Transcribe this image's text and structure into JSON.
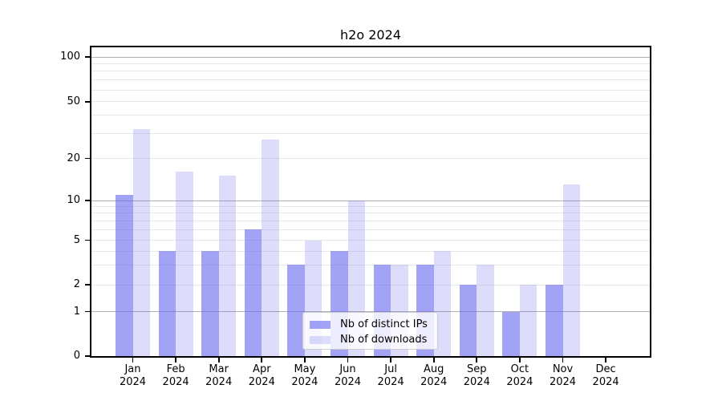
{
  "chart_data": {
    "type": "bar",
    "title": "h2o 2024",
    "categories": [
      "Jan 2024",
      "Feb 2024",
      "Mar 2024",
      "Apr 2024",
      "May 2024",
      "Jun 2024",
      "Jul 2024",
      "Aug 2024",
      "Sep 2024",
      "Oct 2024",
      "Nov 2024",
      "Dec 2024"
    ],
    "series": [
      {
        "name": "Nb of distinct IPs",
        "color": "#6666ee",
        "alpha": 0.6,
        "values": [
          11,
          4,
          4,
          6,
          3,
          4,
          3,
          3,
          2,
          1,
          2,
          0
        ]
      },
      {
        "name": "Nb of downloads",
        "color": "#6666ee",
        "alpha": 0.22,
        "values": [
          32,
          16,
          15,
          27,
          5,
          10,
          3,
          4,
          3,
          2,
          13,
          0
        ]
      }
    ],
    "xlabel": "",
    "ylabel": "",
    "yscale": "log-like with 0 baseline",
    "yticks": [
      0,
      1,
      2,
      5,
      10,
      20,
      50,
      100
    ],
    "minor_grid_values": [
      3,
      4,
      6,
      7,
      8,
      9,
      30,
      40,
      60,
      70,
      80,
      90
    ],
    "ylim": [
      0,
      118
    ],
    "grid": true,
    "legend_position": "lower center inside plot",
    "colors": {
      "bar_distinct_ips": "#a6a6f1",
      "bar_downloads": "#dcdcfa",
      "major_grid": "#b0b0b0",
      "minor_grid": "#e8e8e8",
      "axis": "#000000",
      "background": "#ffffff"
    }
  }
}
